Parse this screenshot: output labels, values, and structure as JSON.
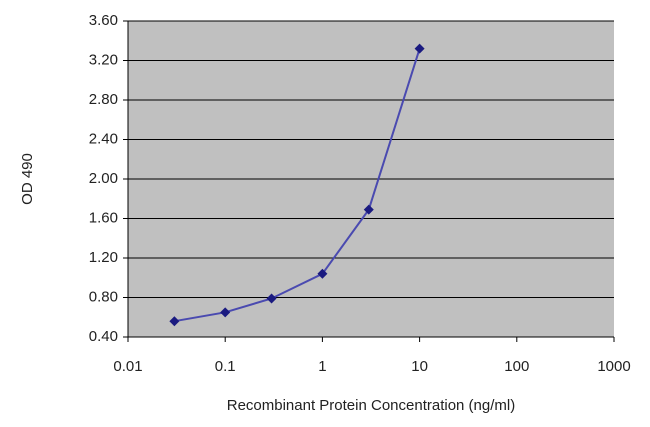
{
  "chart_data": {
    "type": "line",
    "xlabel": "Recombinant Protein Concentration (ng/ml)",
    "ylabel": "OD 490",
    "xscale": "log",
    "xlim": [
      0.01,
      1000
    ],
    "xticks": [
      0.01,
      0.1,
      1,
      10,
      100,
      1000
    ],
    "ylim": [
      0.4,
      3.6
    ],
    "yticks": [
      {
        "value": 0.4,
        "label": "0.40"
      },
      {
        "value": 0.8,
        "label": "0.80"
      },
      {
        "value": 1.2,
        "label": "1.20"
      },
      {
        "value": 1.6,
        "label": "1.60"
      },
      {
        "value": 2.0,
        "label": "2.00"
      },
      {
        "value": 2.4,
        "label": "2.40"
      },
      {
        "value": 2.8,
        "label": "2.80"
      },
      {
        "value": 3.2,
        "label": "3.20"
      },
      {
        "value": 3.6,
        "label": "3.60"
      }
    ],
    "grid": true,
    "x": [
      0.03,
      0.1,
      0.3,
      1,
      3,
      10
    ],
    "series": [
      {
        "color": "#1a1a80",
        "line_color": "#4a4ab0",
        "values": [
          0.56,
          0.65,
          0.79,
          1.04,
          1.69,
          3.32
        ]
      }
    ]
  }
}
